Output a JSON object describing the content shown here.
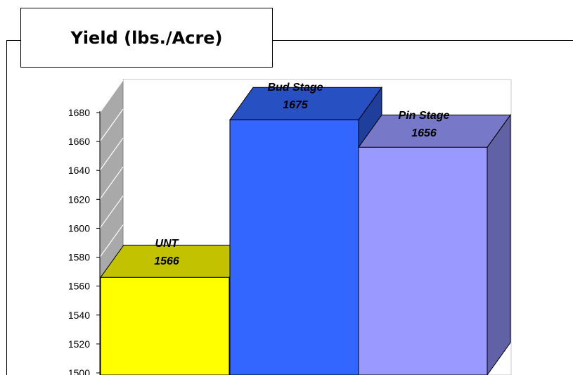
{
  "chart_data": {
    "type": "bar",
    "title": "Yield (lbs./Acre)",
    "categories": [
      "UNT",
      "Bud Stage",
      "Pin Stage"
    ],
    "values": [
      1566,
      1675,
      1656
    ],
    "ylim": [
      1500,
      1680
    ],
    "yticks": [
      1500,
      1520,
      1540,
      1560,
      1580,
      1600,
      1620,
      1640,
      1660,
      1680
    ],
    "colors": {
      "front": [
        "#FFFF00",
        "#3366FF",
        "#9999FF"
      ],
      "top": [
        "#C2C200",
        "#2750C2",
        "#7878C8"
      ],
      "side": [
        "#A6A600",
        "#1F3F9C",
        "#6161A6"
      ]
    },
    "data_labels": [
      {
        "name": "UNT",
        "value": "1566"
      },
      {
        "name": "Bud Stage",
        "value": "1675"
      },
      {
        "name": "Pin Stage",
        "value": "1656"
      }
    ],
    "grid": false,
    "legend": "none"
  }
}
